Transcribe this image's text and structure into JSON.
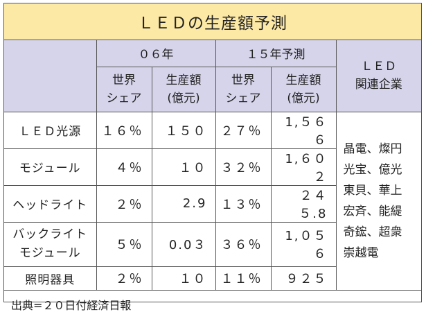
{
  "title": "ＬＥＤの生産額予測",
  "header": {
    "group_06": "０６年",
    "group_15": "１５年予測",
    "share": "世界\nシェア",
    "production": "生産額\n(億元)",
    "related": "ＬＥＤ\n関連企業"
  },
  "rows": [
    {
      "label": "ＬＥＤ光源",
      "share06": "１６％",
      "prod06": "１５０",
      "share15": "２７％",
      "prod15": "1,５６６"
    },
    {
      "label": "モジュール",
      "share06": "４％",
      "prod06": "１０",
      "share15": "３２％",
      "prod15": "1,６０２"
    },
    {
      "label": "ヘッドライト",
      "share06": "２％",
      "prod06": "2.9",
      "share15": "１３％",
      "prod15": "２４５.8"
    },
    {
      "label": "バックライト\nモジュール",
      "share06": "５％",
      "prod06": "0.0３",
      "share15": "３６％",
      "prod15": "1,０５６"
    },
    {
      "label": "照明器具",
      "share06": "２％",
      "prod06": "１０",
      "share15": "１１％",
      "prod15": "９２５"
    }
  ],
  "companies": "晶電、燦円\n光宝、億光\n東貝、華上\n宏斉、能緹\n奇鋐、超衆\n崇越電",
  "source": "出典=２０日付経済日報"
}
